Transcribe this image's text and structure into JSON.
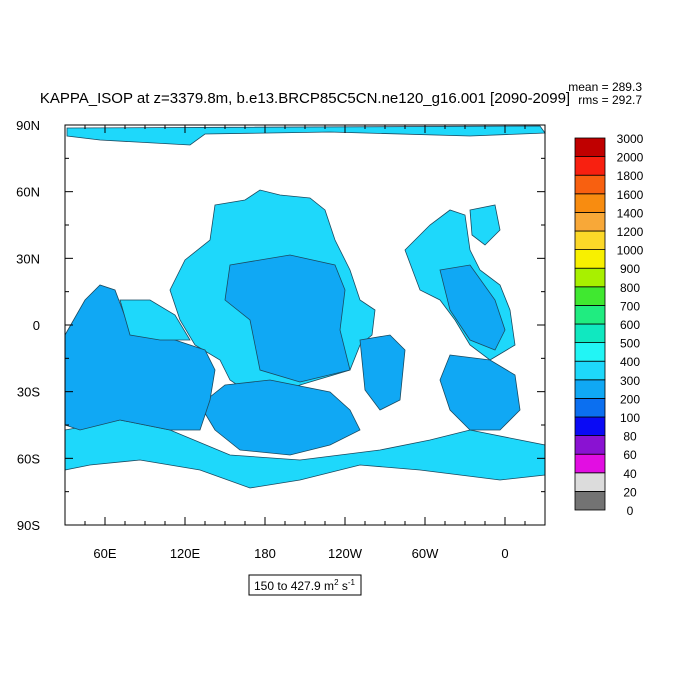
{
  "title": "KAPPA_ISOP at z=3379.8m, b.e13.BRCP85C5CN.ne120_g16.001 [2090-2099]",
  "stats": {
    "mean": "mean = 289.3",
    "rms": "rms = 292.7"
  },
  "lat_labels": [
    "90N",
    "60N",
    "30N",
    "0",
    "30S",
    "60S",
    "90S"
  ],
  "lon_labels": [
    "60E",
    "120E",
    "180",
    "120W",
    "60W",
    "0"
  ],
  "colorbar": {
    "levels": [
      0,
      20,
      40,
      60,
      80,
      100,
      200,
      300,
      400,
      500,
      600,
      700,
      800,
      900,
      1000,
      1200,
      1400,
      1600,
      1800,
      2000,
      3000
    ],
    "colors": [
      "#737373",
      "#dcdcdc",
      "#e20ee2",
      "#8a12d2",
      "#0a0af5",
      "#0b6ff0",
      "#10a8f4",
      "#1ed8fb",
      "#22f5f5",
      "#10e8c0",
      "#20ec80",
      "#40e830",
      "#a8f000",
      "#f8f000",
      "#fcd828",
      "#f8a838",
      "#f88c10",
      "#f86010",
      "#f82010",
      "#c00000"
    ]
  },
  "range_label": {
    "text": "150 to 427.9 m",
    "sup1": "2",
    "mid": " s",
    "sup2": "-1"
  }
}
